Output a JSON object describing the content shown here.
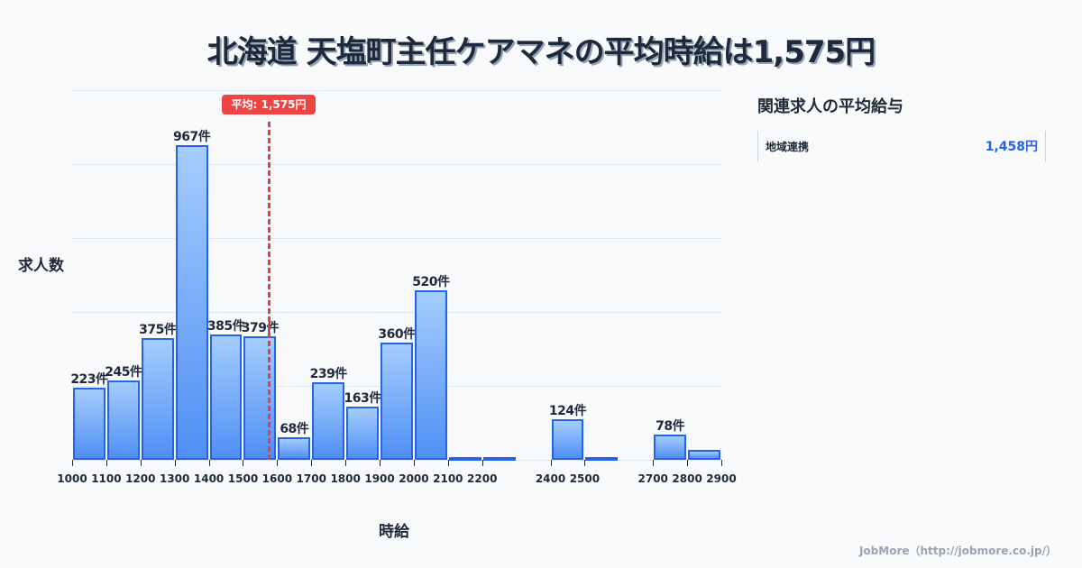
{
  "title": "北海道 天塩町主任ケアマネの平均時給は1,575円",
  "average_badge": "平均: 1,575円",
  "y_axis_label": "求人数",
  "x_axis_label": "時給",
  "side_panel": {
    "title": "関連求人の平均給与",
    "items": [
      {
        "name": "地域連携",
        "value": "1,458円"
      }
    ]
  },
  "credit": "JobMore（http://jobmore.co.jp/）",
  "colors": {
    "bar_border": "#2563eb",
    "bar_top": "#a5cdfd",
    "bar_bottom": "#4f8ff5",
    "average_line": "#ef4444",
    "accent_value": "#2563eb"
  },
  "chart_data": {
    "type": "bar",
    "title": "北海道 天塩町主任ケアマネの平均時給は1,575円",
    "xlabel": "時給",
    "ylabel": "求人数",
    "bins": [
      {
        "start": 1000,
        "end": 1100,
        "count": 223,
        "label": "223件"
      },
      {
        "start": 1100,
        "end": 1200,
        "count": 245,
        "label": "245件"
      },
      {
        "start": 1200,
        "end": 1300,
        "count": 375,
        "label": "375件"
      },
      {
        "start": 1300,
        "end": 1400,
        "count": 967,
        "label": "967件"
      },
      {
        "start": 1400,
        "end": 1500,
        "count": 385,
        "label": "385件"
      },
      {
        "start": 1500,
        "end": 1600,
        "count": 379,
        "label": "379件"
      },
      {
        "start": 1600,
        "end": 1700,
        "count": 68,
        "label": "68件"
      },
      {
        "start": 1700,
        "end": 1800,
        "count": 239,
        "label": "239件"
      },
      {
        "start": 1800,
        "end": 1900,
        "count": 163,
        "label": "163件"
      },
      {
        "start": 1900,
        "end": 2000,
        "count": 360,
        "label": "360件"
      },
      {
        "start": 2000,
        "end": 2100,
        "count": 520,
        "label": "520件"
      },
      {
        "start": 2100,
        "end": 2200,
        "count": 8,
        "label": ""
      },
      {
        "start": 2200,
        "end": 2300,
        "count": 2,
        "label": ""
      },
      {
        "start": 2400,
        "end": 2500,
        "count": 124,
        "label": "124件"
      },
      {
        "start": 2500,
        "end": 2600,
        "count": 2,
        "label": ""
      },
      {
        "start": 2700,
        "end": 2800,
        "count": 78,
        "label": "78件"
      },
      {
        "start": 2800,
        "end": 2900,
        "count": 30,
        "label": ""
      }
    ],
    "x_ticks": [
      1000,
      1100,
      1200,
      1300,
      1400,
      1500,
      1600,
      1700,
      1800,
      1900,
      2000,
      2100,
      2200,
      2400,
      2500,
      2700,
      2800,
      2900
    ],
    "xlim": [
      1000,
      2900
    ],
    "ylim": [
      0,
      1134
    ],
    "average": 1575,
    "average_label": "平均: 1,575円",
    "grid": true,
    "y_tick_labels_visible": false
  }
}
